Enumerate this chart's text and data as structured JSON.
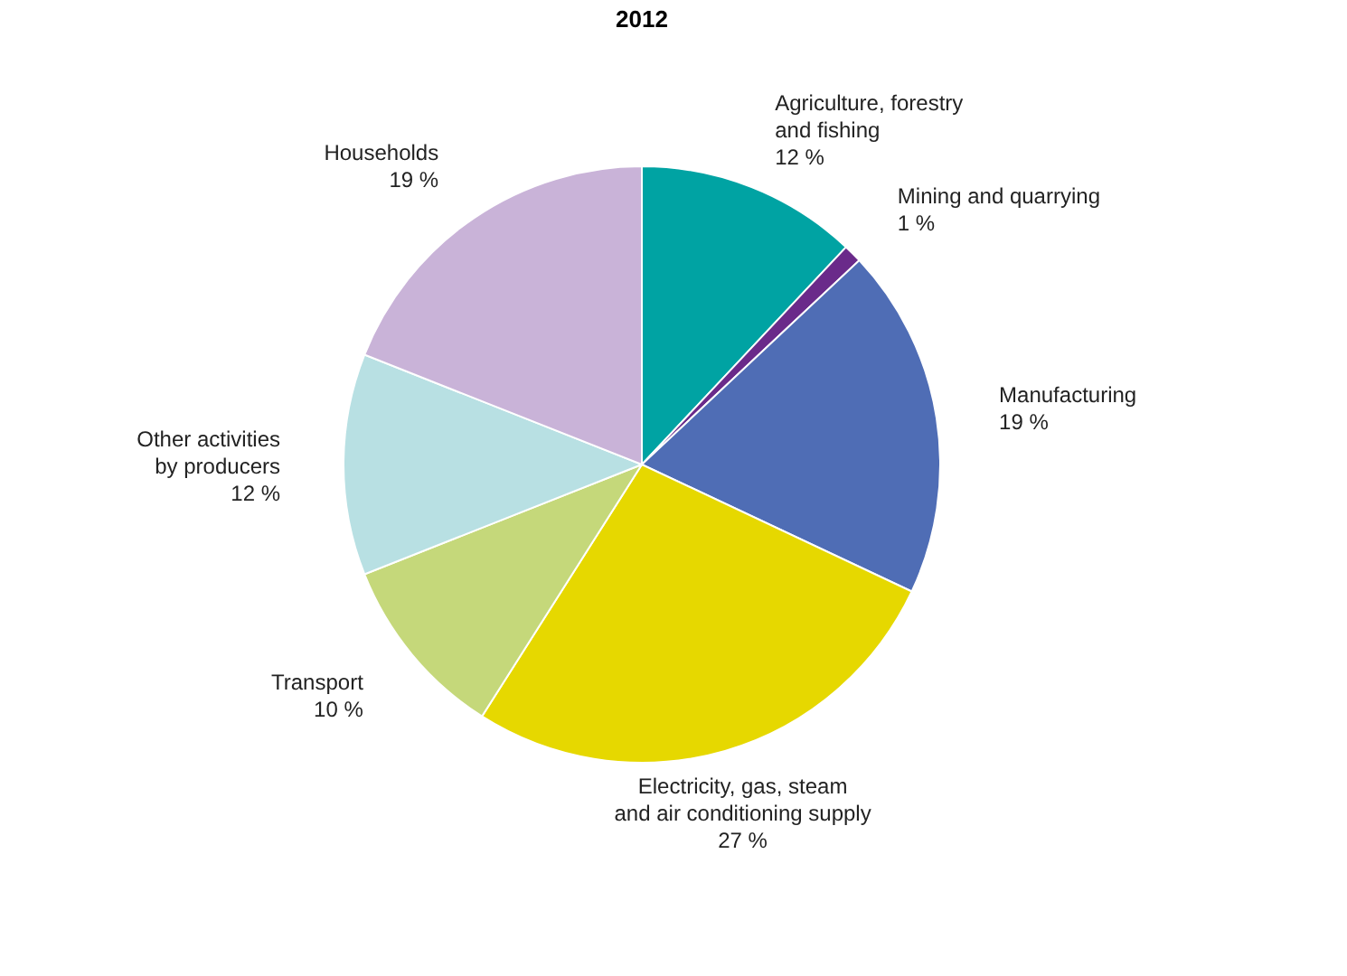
{
  "chart_data": {
    "type": "pie",
    "title": "2012",
    "categories": [
      "Agriculture, forestry\nand fishing",
      "Mining and quarrying",
      "Manufacturing",
      "Electricity, gas, steam\nand air conditioning supply",
      "Transport",
      "Other activities\nby producers",
      "Households"
    ],
    "values": [
      12,
      1,
      19,
      27,
      10,
      12,
      19
    ],
    "value_labels": [
      "12 %",
      "1 %",
      "19 %",
      "27 %",
      "10 %",
      "12 %",
      "19 %"
    ],
    "colors": [
      "#00a3a3",
      "#6a2a8a",
      "#4f6db5",
      "#e6d800",
      "#c5d87a",
      "#b8e0e3",
      "#c9b3d8"
    ]
  }
}
